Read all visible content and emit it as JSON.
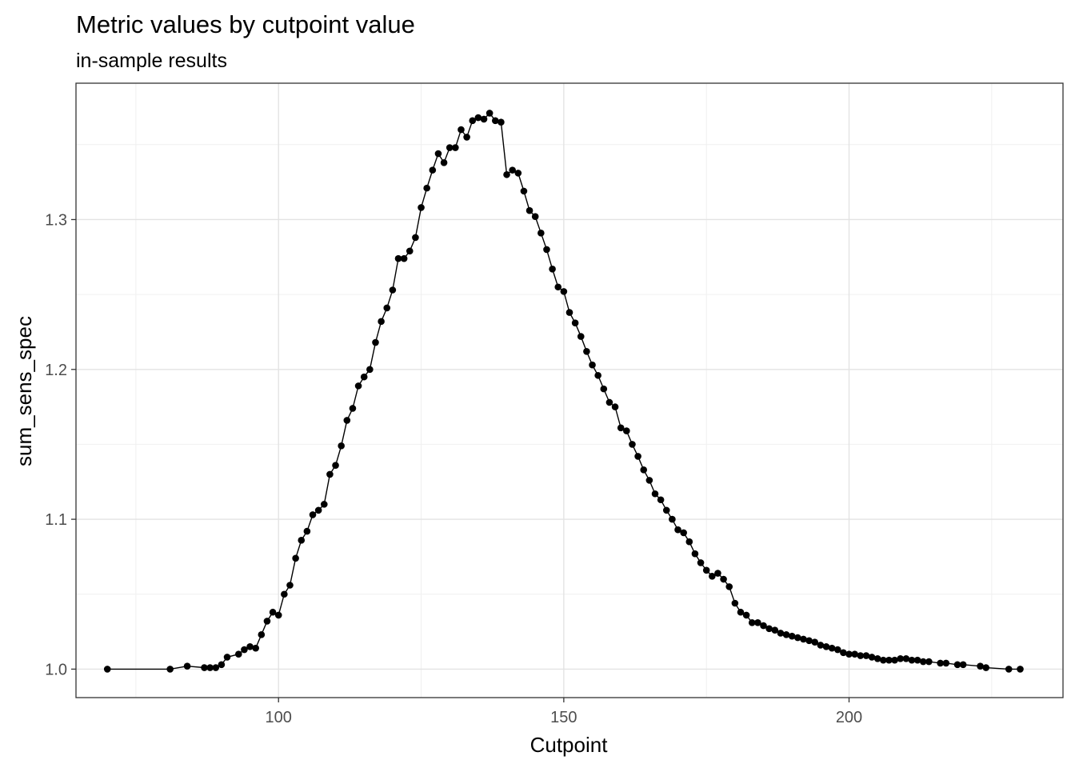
{
  "chart_data": {
    "type": "line",
    "title": "Metric values by cutpoint value",
    "subtitle": "in-sample results",
    "xlabel": "Cutpoint",
    "ylabel": "sum_sens_spec",
    "xlim": [
      64.5,
      237.5
    ],
    "ylim": [
      0.981,
      1.391
    ],
    "x_ticks": [
      100,
      150,
      200
    ],
    "y_ticks": [
      1.0,
      1.1,
      1.2,
      1.3
    ],
    "x_tick_labels": [
      "100",
      "150",
      "200"
    ],
    "y_tick_labels": [
      "1.0",
      "1.1",
      "1.2",
      "1.3"
    ],
    "grid": true,
    "series": [
      {
        "x": [
          70,
          81,
          84,
          87,
          88,
          89,
          90,
          91,
          93,
          94,
          95,
          96,
          97,
          98,
          99,
          100,
          101,
          102,
          103,
          104,
          105,
          106,
          107,
          108,
          109,
          110,
          111,
          112,
          113,
          114,
          115,
          116,
          117,
          118,
          119,
          120,
          121,
          122,
          123,
          124,
          125,
          126,
          127,
          128,
          129,
          130,
          131,
          132,
          133,
          134,
          135,
          136,
          137,
          138,
          139,
          140,
          141,
          142,
          143,
          144,
          145,
          146,
          147,
          148,
          149,
          150,
          151,
          152,
          153,
          154,
          155,
          156,
          157,
          158,
          159,
          160,
          161,
          162,
          163,
          164,
          165,
          166,
          167,
          168,
          169,
          170,
          171,
          172,
          173,
          174,
          175,
          176,
          177,
          178,
          179,
          180,
          181,
          182,
          183,
          184,
          185,
          186,
          187,
          188,
          189,
          190,
          191,
          192,
          193,
          194,
          195,
          196,
          197,
          198,
          199,
          200,
          201,
          202,
          203,
          204,
          205,
          206,
          207,
          208,
          209,
          210,
          211,
          212,
          213,
          214,
          216,
          217,
          219,
          220,
          223,
          224,
          228,
          230
        ],
        "y": [
          1.0,
          1.0,
          1.002,
          1.001,
          1.001,
          1.001,
          1.003,
          1.008,
          1.01,
          1.013,
          1.015,
          1.014,
          1.023,
          1.032,
          1.038,
          1.036,
          1.05,
          1.056,
          1.074,
          1.086,
          1.092,
          1.103,
          1.106,
          1.11,
          1.13,
          1.136,
          1.149,
          1.166,
          1.174,
          1.189,
          1.195,
          1.2,
          1.218,
          1.232,
          1.241,
          1.253,
          1.274,
          1.274,
          1.279,
          1.288,
          1.308,
          1.321,
          1.333,
          1.344,
          1.338,
          1.348,
          1.348,
          1.36,
          1.355,
          1.366,
          1.368,
          1.367,
          1.371,
          1.366,
          1.365,
          1.33,
          1.333,
          1.331,
          1.319,
          1.306,
          1.302,
          1.291,
          1.28,
          1.267,
          1.255,
          1.252,
          1.238,
          1.231,
          1.222,
          1.212,
          1.203,
          1.196,
          1.187,
          1.178,
          1.175,
          1.161,
          1.159,
          1.15,
          1.142,
          1.133,
          1.126,
          1.117,
          1.113,
          1.106,
          1.1,
          1.093,
          1.091,
          1.085,
          1.077,
          1.071,
          1.066,
          1.062,
          1.064,
          1.06,
          1.055,
          1.044,
          1.038,
          1.036,
          1.031,
          1.031,
          1.029,
          1.027,
          1.026,
          1.024,
          1.023,
          1.022,
          1.021,
          1.02,
          1.019,
          1.018,
          1.016,
          1.015,
          1.014,
          1.013,
          1.011,
          1.01,
          1.01,
          1.009,
          1.009,
          1.008,
          1.007,
          1.006,
          1.006,
          1.006,
          1.007,
          1.007,
          1.006,
          1.006,
          1.005,
          1.005,
          1.004,
          1.004,
          1.003,
          1.003,
          1.002,
          1.001,
          1.0,
          1.0
        ]
      }
    ]
  }
}
